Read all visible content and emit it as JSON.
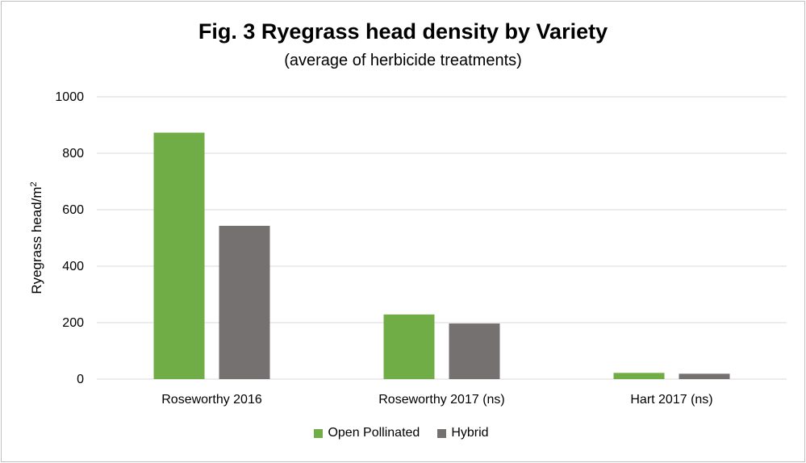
{
  "chart_data": {
    "type": "bar",
    "title": "Fig. 3 Ryegrass head density by Variety",
    "subtitle": "(average of herbicide treatments)",
    "ylabel": "Ryegrass head/m",
    "ylabel_sup": "2",
    "xlabel": "",
    "categories": [
      "Roseworthy 2016",
      "Roseworthy 2017 (ns)",
      "Hart 2017 (ns)"
    ],
    "ylim": [
      0,
      1000
    ],
    "yticks": [
      "0",
      "200",
      "400",
      "600",
      "800",
      "1000"
    ],
    "grid": true,
    "legend_position": "bottom",
    "series": [
      {
        "name": "Open Pollinated",
        "color": "#70ad47",
        "values": [
          873,
          229,
          22
        ]
      },
      {
        "name": "Hybrid",
        "color": "#767171",
        "values": [
          543,
          197,
          19
        ]
      }
    ]
  }
}
